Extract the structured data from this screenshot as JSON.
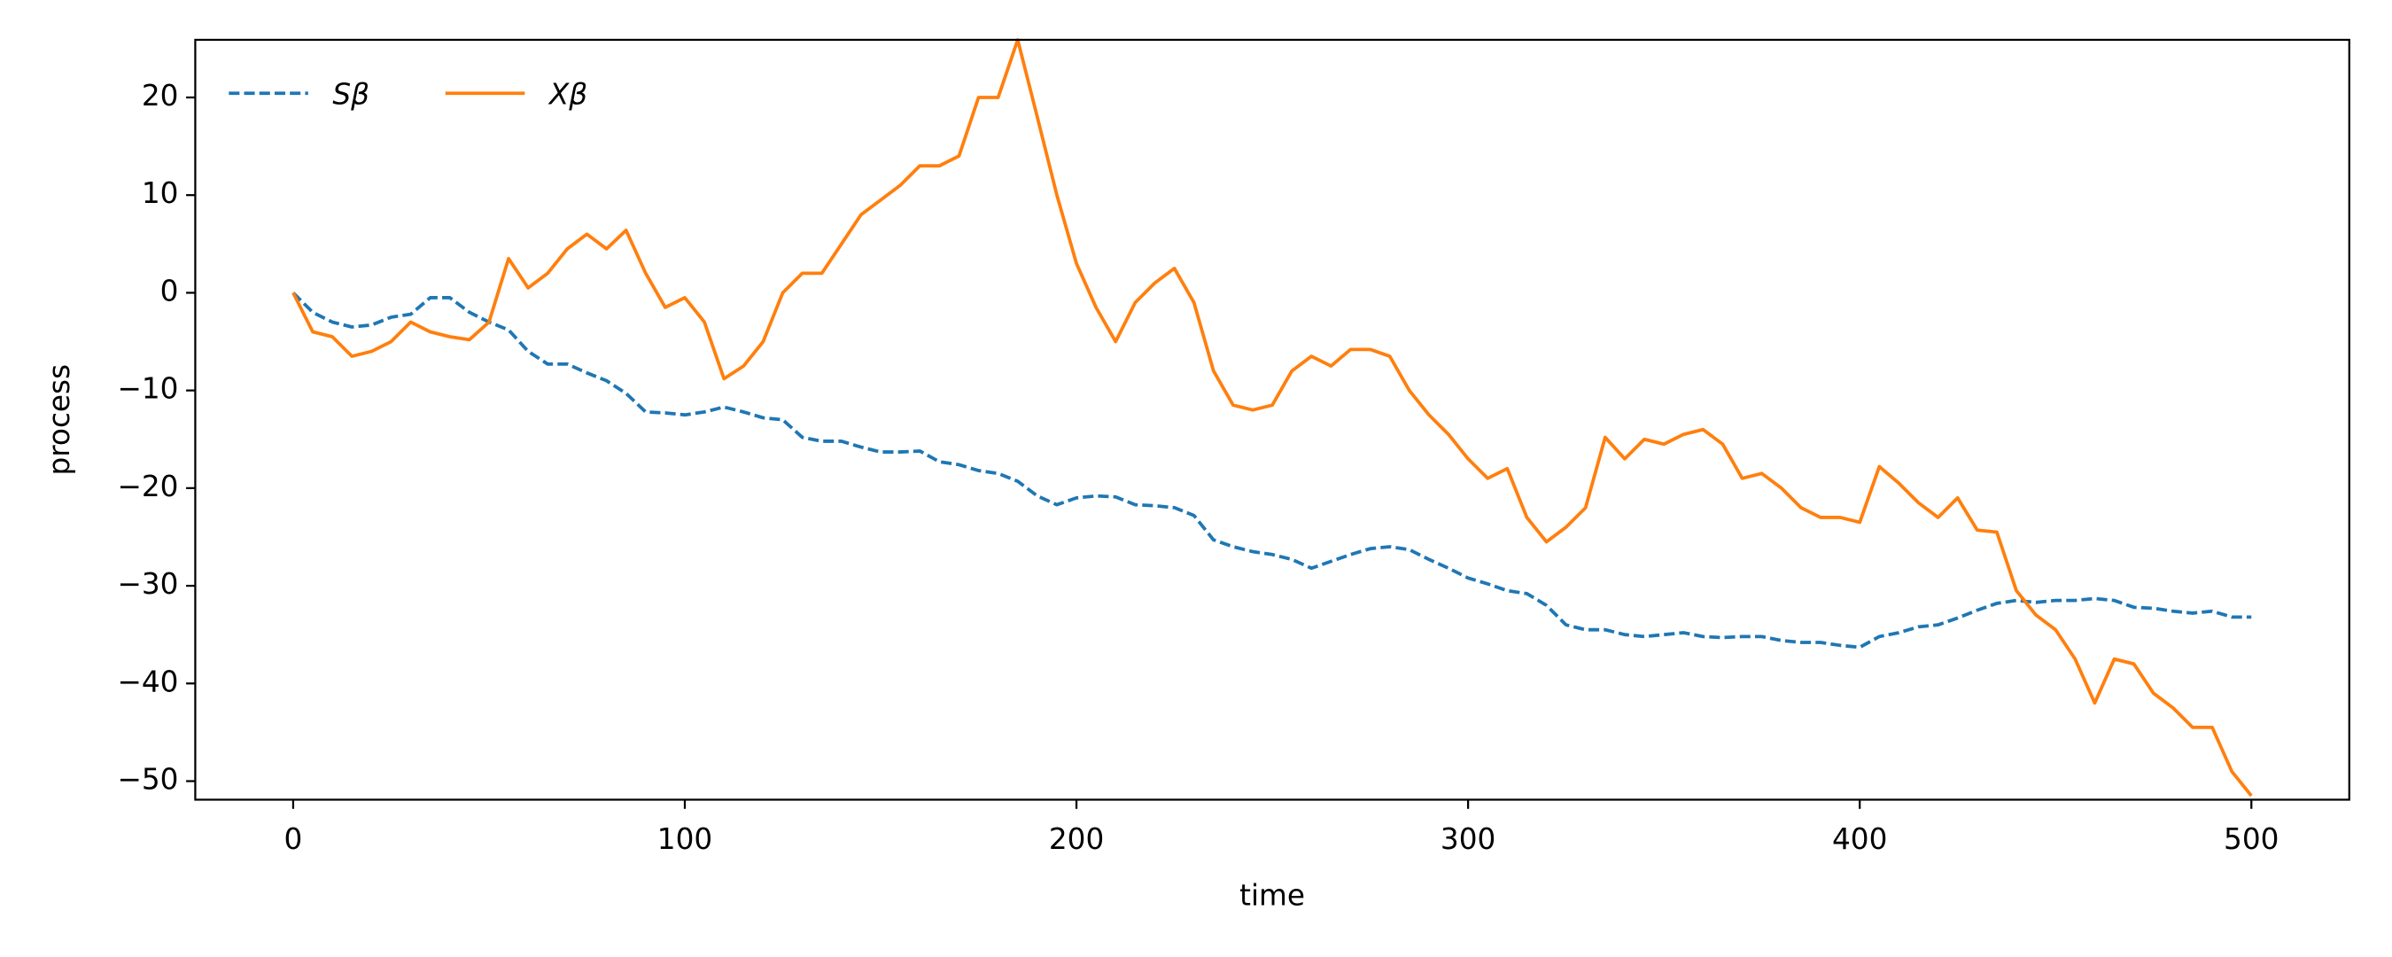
{
  "chart_data": {
    "type": "line",
    "xlabel": "time",
    "ylabel": "process",
    "x": [
      0,
      5,
      10,
      15,
      20,
      25,
      30,
      35,
      40,
      45,
      50,
      55,
      60,
      65,
      70,
      75,
      80,
      85,
      90,
      95,
      100,
      105,
      110,
      115,
      120,
      125,
      130,
      135,
      140,
      145,
      150,
      155,
      160,
      165,
      170,
      175,
      180,
      185,
      190,
      195,
      200,
      205,
      210,
      215,
      220,
      225,
      230,
      235,
      240,
      245,
      250,
      255,
      260,
      265,
      270,
      275,
      280,
      285,
      290,
      295,
      300,
      305,
      310,
      315,
      320,
      325,
      330,
      335,
      340,
      345,
      350,
      355,
      360,
      365,
      370,
      375,
      380,
      385,
      390,
      395,
      400,
      405,
      410,
      415,
      420,
      425,
      430,
      435,
      440,
      445,
      450,
      455,
      460,
      465,
      470,
      475,
      480,
      485,
      490,
      495,
      500
    ],
    "series": [
      {
        "name": "Sβ",
        "color": "#1f77b4",
        "dash": true,
        "values": [
          0,
          -2,
          -3,
          -3.5,
          -3.3,
          -2.5,
          -2.2,
          -0.5,
          -0.5,
          -2,
          -3,
          -3.8,
          -6,
          -7.3,
          -7.3,
          -8.2,
          -9,
          -10.3,
          -12.2,
          -12.3,
          -12.5,
          -12.2,
          -11.7,
          -12.2,
          -12.8,
          -13,
          -14.8,
          -15.2,
          -15.2,
          -15.8,
          -16.3,
          -16.3,
          -16.2,
          -17.3,
          -17.6,
          -18.2,
          -18.5,
          -19.3,
          -20.8,
          -21.7,
          -21,
          -20.8,
          -20.9,
          -21.7,
          -21.8,
          -22,
          -22.8,
          -25.3,
          -26,
          -26.5,
          -26.8,
          -27.3,
          -28.2,
          -27.5,
          -26.8,
          -26.2,
          -26,
          -26.3,
          -27.3,
          -28.2,
          -29.2,
          -29.8,
          -30.5,
          -30.8,
          -32,
          -34,
          -34.5,
          -34.5,
          -35,
          -35.2,
          -35,
          -34.8,
          -35.2,
          -35.3,
          -35.2,
          -35.2,
          -35.6,
          -35.8,
          -35.8,
          -36.1,
          -36.3,
          -35.2,
          -34.8,
          -34.2,
          -34,
          -33.3,
          -32.5,
          -31.8,
          -31.5,
          -31.7,
          -31.5,
          -31.5,
          -31.3,
          -31.5,
          -32.2,
          -32.3,
          -32.6,
          -32.8,
          -32.6,
          -33.2,
          -33.2
        ]
      },
      {
        "name": "Xβ",
        "color": "#ff7f0e",
        "dash": false,
        "values": [
          0,
          -4,
          -4.5,
          -6.5,
          -6,
          -5,
          -3,
          -4,
          -4.5,
          -4.8,
          -3,
          3.5,
          0.5,
          2,
          4.5,
          6,
          4.5,
          6.4,
          2,
          -1.5,
          -0.5,
          -3,
          -8.8,
          -7.5,
          -5,
          0,
          2,
          2,
          5,
          8,
          9.5,
          11,
          13,
          13,
          14,
          20,
          20,
          25.9,
          18,
          10,
          3,
          -1.5,
          -5,
          -1,
          1,
          2.5,
          -1,
          -8,
          -11.5,
          -12,
          -11.5,
          -8,
          -6.5,
          -7.5,
          -5.8,
          -5.8,
          -6.5,
          -10,
          -12.5,
          -14.5,
          -17,
          -19,
          -18,
          -23,
          -25.5,
          -24,
          -22,
          -14.8,
          -17,
          -15,
          -15.5,
          -14.5,
          -14,
          -15.5,
          -19,
          -18.5,
          -20,
          -22,
          -23,
          -23,
          -23.5,
          -17.8,
          -19.5,
          -21.5,
          -23,
          -21,
          -24.3,
          -24.5,
          -30.5,
          -33,
          -34.5,
          -37.5,
          -42,
          -37.5,
          -38,
          -41,
          -42.5,
          -44.5,
          -44.5,
          -49,
          -51.5
        ]
      }
    ],
    "xlim": [
      -25,
      525
    ],
    "xticks": [
      0,
      100,
      200,
      300,
      400,
      500
    ],
    "ylim": [
      -51.9,
      25.9
    ],
    "yticks": [
      {
        "value": -50,
        "label": "−50"
      },
      {
        "value": -40,
        "label": "−40"
      },
      {
        "value": -30,
        "label": "−30"
      },
      {
        "value": -20,
        "label": "−20"
      },
      {
        "value": -10,
        "label": "−10"
      },
      0,
      10,
      20
    ],
    "legend": "upper left",
    "grid": false
  }
}
